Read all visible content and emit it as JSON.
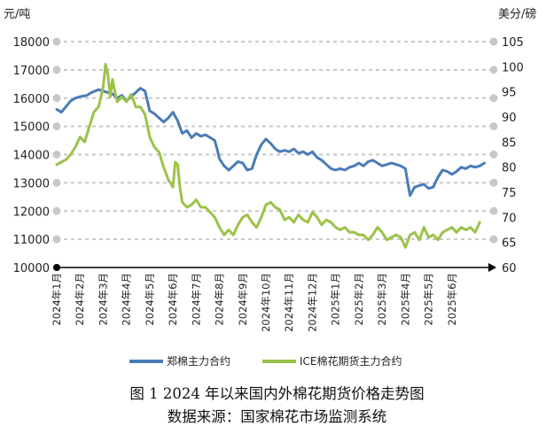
{
  "chart_data": {
    "type": "line",
    "left_axis_unit": "元/吨",
    "right_axis_unit": "美分/磅",
    "left_axis": {
      "range": [
        10000,
        18000
      ],
      "ticks": [
        "10000",
        "11000",
        "12000",
        "13000",
        "14000",
        "15000",
        "16000",
        "17000",
        "18000"
      ]
    },
    "right_axis": {
      "range": [
        60,
        105
      ],
      "ticks": [
        "60",
        "65",
        "70",
        "75",
        "80",
        "85",
        "90",
        "95",
        "100",
        "105"
      ]
    },
    "grid": "horizontal dashed",
    "x_range": [
      0,
      18.8
    ],
    "categories": [
      "2024年1月",
      "2024年2月",
      "2024年3月",
      "2024年4月",
      "2024年5月",
      "2024年6月",
      "2024年7月",
      "2024年8月",
      "2024年9月",
      "2024年10月",
      "2024年11月",
      "2024年12月",
      "2025年1月",
      "2025年2月",
      "2025年3月",
      "2025年4月",
      "2025年5月",
      "2025年6月"
    ],
    "series": [
      {
        "name": "郑棉主力合约",
        "axis": "left",
        "color": "#4a7cb7",
        "points": [
          [
            0,
            15600
          ],
          [
            0.2,
            15500
          ],
          [
            0.4,
            15700
          ],
          [
            0.6,
            15900
          ],
          [
            0.8,
            16000
          ],
          [
            1.0,
            16050
          ],
          [
            1.3,
            16100
          ],
          [
            1.5,
            16200
          ],
          [
            1.8,
            16300
          ],
          [
            2.0,
            16250
          ],
          [
            2.2,
            16200
          ],
          [
            2.4,
            16150
          ],
          [
            2.6,
            16000
          ],
          [
            2.8,
            16100
          ],
          [
            3.0,
            15900
          ],
          [
            3.2,
            16050
          ],
          [
            3.4,
            16200
          ],
          [
            3.6,
            16350
          ],
          [
            3.8,
            16250
          ],
          [
            3.9,
            15900
          ],
          [
            4.0,
            15550
          ],
          [
            4.2,
            15450
          ],
          [
            4.4,
            15300
          ],
          [
            4.6,
            15150
          ],
          [
            4.8,
            15300
          ],
          [
            5.0,
            15500
          ],
          [
            5.2,
            15200
          ],
          [
            5.4,
            14750
          ],
          [
            5.6,
            14850
          ],
          [
            5.8,
            14600
          ],
          [
            6.0,
            14750
          ],
          [
            6.2,
            14650
          ],
          [
            6.4,
            14700
          ],
          [
            6.6,
            14600
          ],
          [
            6.8,
            14500
          ],
          [
            6.9,
            14200
          ],
          [
            7.0,
            13850
          ],
          [
            7.2,
            13600
          ],
          [
            7.4,
            13450
          ],
          [
            7.6,
            13600
          ],
          [
            7.8,
            13750
          ],
          [
            8.0,
            13700
          ],
          [
            8.2,
            13450
          ],
          [
            8.4,
            13500
          ],
          [
            8.6,
            14000
          ],
          [
            8.8,
            14350
          ],
          [
            9.0,
            14550
          ],
          [
            9.2,
            14400
          ],
          [
            9.4,
            14200
          ],
          [
            9.6,
            14100
          ],
          [
            9.8,
            14150
          ],
          [
            10.0,
            14100
          ],
          [
            10.2,
            14200
          ],
          [
            10.4,
            14050
          ],
          [
            10.6,
            14100
          ],
          [
            10.8,
            14000
          ],
          [
            11.0,
            14100
          ],
          [
            11.2,
            13900
          ],
          [
            11.4,
            13800
          ],
          [
            11.6,
            13650
          ],
          [
            11.8,
            13500
          ],
          [
            12.0,
            13450
          ],
          [
            12.2,
            13500
          ],
          [
            12.4,
            13450
          ],
          [
            12.6,
            13550
          ],
          [
            12.8,
            13600
          ],
          [
            13.0,
            13700
          ],
          [
            13.2,
            13600
          ],
          [
            13.4,
            13750
          ],
          [
            13.6,
            13800
          ],
          [
            13.8,
            13700
          ],
          [
            14.0,
            13600
          ],
          [
            14.2,
            13650
          ],
          [
            14.4,
            13700
          ],
          [
            14.6,
            13650
          ],
          [
            14.8,
            13600
          ],
          [
            15.0,
            13500
          ],
          [
            15.1,
            13000
          ],
          [
            15.2,
            12550
          ],
          [
            15.4,
            12850
          ],
          [
            15.6,
            12900
          ],
          [
            15.8,
            12950
          ],
          [
            16.0,
            12800
          ],
          [
            16.2,
            12850
          ],
          [
            16.4,
            13200
          ],
          [
            16.6,
            13450
          ],
          [
            16.8,
            13400
          ],
          [
            17.0,
            13300
          ],
          [
            17.2,
            13400
          ],
          [
            17.4,
            13550
          ],
          [
            17.6,
            13500
          ],
          [
            17.8,
            13600
          ],
          [
            18.0,
            13550
          ],
          [
            18.2,
            13600
          ],
          [
            18.4,
            13700
          ]
        ]
      },
      {
        "name": "ICE棉花期货主力合约",
        "axis": "right",
        "color": "#9cc24a",
        "points": [
          [
            0,
            80.5
          ],
          [
            0.2,
            81
          ],
          [
            0.4,
            81.5
          ],
          [
            0.6,
            82.5
          ],
          [
            0.8,
            84
          ],
          [
            1.0,
            86
          ],
          [
            1.2,
            85
          ],
          [
            1.4,
            88
          ],
          [
            1.6,
            91
          ],
          [
            1.8,
            92
          ],
          [
            2.0,
            96
          ],
          [
            2.1,
            100.5
          ],
          [
            2.2,
            98.5
          ],
          [
            2.3,
            94
          ],
          [
            2.4,
            97.5
          ],
          [
            2.5,
            95
          ],
          [
            2.6,
            93
          ],
          [
            2.8,
            94
          ],
          [
            3.0,
            93
          ],
          [
            3.2,
            94.5
          ],
          [
            3.4,
            92
          ],
          [
            3.6,
            92
          ],
          [
            3.8,
            90.5
          ],
          [
            4.0,
            86
          ],
          [
            4.2,
            84
          ],
          [
            4.4,
            83
          ],
          [
            4.6,
            80
          ],
          [
            4.8,
            77.5
          ],
          [
            5.0,
            76
          ],
          [
            5.1,
            81
          ],
          [
            5.2,
            80.5
          ],
          [
            5.3,
            76
          ],
          [
            5.4,
            73
          ],
          [
            5.6,
            72
          ],
          [
            5.8,
            72.5
          ],
          [
            6.0,
            73.5
          ],
          [
            6.2,
            72
          ],
          [
            6.4,
            72
          ],
          [
            6.6,
            71
          ],
          [
            6.8,
            70
          ],
          [
            7.0,
            68
          ],
          [
            7.2,
            66.5
          ],
          [
            7.4,
            67.5
          ],
          [
            7.6,
            66.5
          ],
          [
            7.8,
            68.5
          ],
          [
            8.0,
            70
          ],
          [
            8.2,
            70.5
          ],
          [
            8.4,
            69
          ],
          [
            8.6,
            68
          ],
          [
            8.8,
            70
          ],
          [
            9.0,
            72.5
          ],
          [
            9.2,
            73
          ],
          [
            9.4,
            72
          ],
          [
            9.6,
            71.5
          ],
          [
            9.8,
            69.5
          ],
          [
            10.0,
            70
          ],
          [
            10.2,
            69
          ],
          [
            10.4,
            70.5
          ],
          [
            10.6,
            69.5
          ],
          [
            10.8,
            69
          ],
          [
            11.0,
            71
          ],
          [
            11.2,
            70
          ],
          [
            11.4,
            68.5
          ],
          [
            11.6,
            69.5
          ],
          [
            11.8,
            69
          ],
          [
            12.0,
            68
          ],
          [
            12.2,
            67.5
          ],
          [
            12.4,
            68
          ],
          [
            12.6,
            67
          ],
          [
            12.8,
            67
          ],
          [
            13.0,
            66.5
          ],
          [
            13.2,
            66.5
          ],
          [
            13.4,
            65.5
          ],
          [
            13.6,
            66.5
          ],
          [
            13.8,
            68
          ],
          [
            14.0,
            67
          ],
          [
            14.2,
            65.5
          ],
          [
            14.4,
            66
          ],
          [
            14.6,
            66.5
          ],
          [
            14.8,
            66
          ],
          [
            15.0,
            64
          ],
          [
            15.2,
            66.5
          ],
          [
            15.4,
            67
          ],
          [
            15.6,
            65.5
          ],
          [
            15.8,
            68
          ],
          [
            16.0,
            66
          ],
          [
            16.2,
            66.5
          ],
          [
            16.4,
            65.5
          ],
          [
            16.6,
            67
          ],
          [
            16.8,
            67.5
          ],
          [
            17.0,
            68
          ],
          [
            17.2,
            67
          ],
          [
            17.4,
            68
          ],
          [
            17.6,
            67.5
          ],
          [
            17.8,
            68
          ],
          [
            18.0,
            67
          ],
          [
            18.2,
            69
          ]
        ]
      }
    ]
  },
  "legend": [
    "郑棉主力合约",
    "ICE棉花期货主力合约"
  ],
  "caption": {
    "title": "图 1   2024 年以来国内外棉花期货价格走势图",
    "source": "数据来源：国家棉花市场监测系统"
  }
}
